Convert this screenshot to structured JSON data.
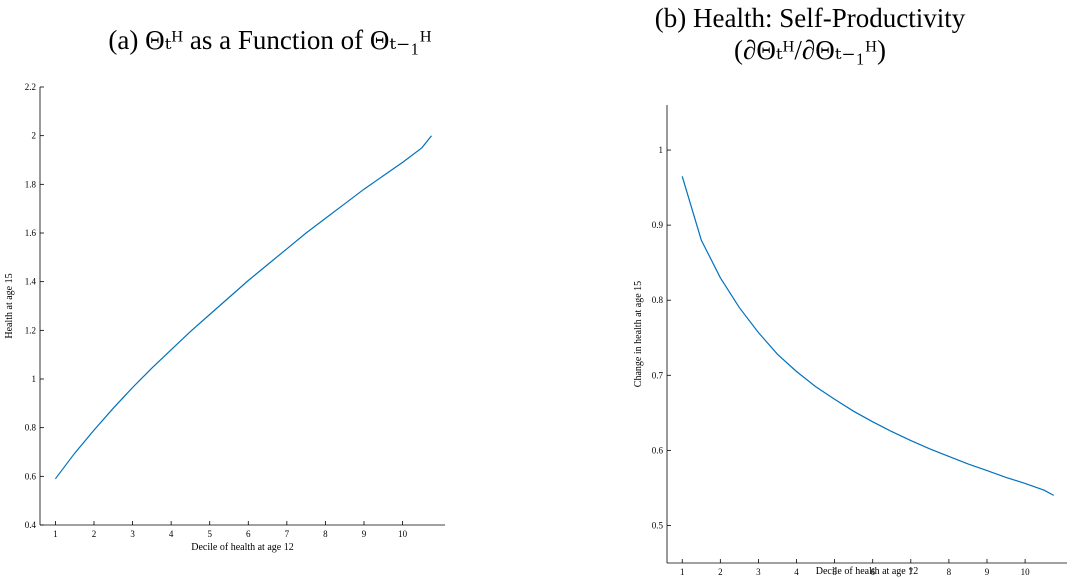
{
  "chart_data": [
    {
      "type": "line",
      "title": "(a) Θₜᴴ as a Function of Θₜ₋₁ᴴ",
      "subtitle": "",
      "xlabel": "Decile of health at age 12",
      "ylabel": "Health at age 15",
      "xlim": [
        0.6,
        11.1
      ],
      "ylim": [
        0.4,
        2.2
      ],
      "xticks": [
        1,
        2,
        3,
        4,
        5,
        6,
        7,
        8,
        9,
        10
      ],
      "yticks": [
        0.4,
        0.6,
        0.8,
        1,
        1.2,
        1.4,
        1.6,
        1.8,
        2,
        2.2
      ],
      "ytick_labels": [
        "0.4",
        "0.6",
        "0.8",
        "1",
        "1.2",
        "1.4",
        "1.6",
        "1.8",
        "2",
        "2.2"
      ],
      "grid": false,
      "color": "#0072bd",
      "series": [
        {
          "x": [
            1,
            1.5,
            2,
            2.5,
            3,
            3.5,
            4,
            4.5,
            5,
            5.5,
            6,
            6.5,
            7,
            7.5,
            8,
            8.5,
            9,
            9.5,
            10,
            10.5,
            10.75
          ],
          "values": [
            0.59,
            0.695,
            0.79,
            0.88,
            0.965,
            1.045,
            1.12,
            1.195,
            1.265,
            1.335,
            1.405,
            1.47,
            1.535,
            1.6,
            1.66,
            1.72,
            1.78,
            1.835,
            1.89,
            1.95,
            2.0
          ]
        }
      ]
    },
    {
      "type": "line",
      "title": "(b) Health: Self-Productivity",
      "subtitle": "(∂Θₜᴴ/∂Θₜ₋₁ᴴ)",
      "xlabel": "Decile of health at age 12",
      "ylabel": "Change in health at age 15",
      "xlim": [
        0.6,
        11.1
      ],
      "ylim": [
        0.45,
        1.06
      ],
      "xticks": [
        1,
        2,
        3,
        4,
        5,
        6,
        7,
        8,
        9,
        10
      ],
      "yticks": [
        0.5,
        0.6,
        0.7,
        0.8,
        0.9,
        1
      ],
      "ytick_labels": [
        "0.5",
        "0.6",
        "0.7",
        "0.8",
        "0.9",
        "1"
      ],
      "grid": false,
      "color": "#0072bd",
      "series": [
        {
          "x": [
            1,
            1.5,
            2,
            2.5,
            3,
            3.5,
            4,
            4.5,
            5,
            5.5,
            6,
            6.5,
            7,
            7.5,
            8,
            8.5,
            9,
            9.5,
            10,
            10.5,
            10.75
          ],
          "values": [
            0.965,
            0.88,
            0.83,
            0.79,
            0.757,
            0.728,
            0.705,
            0.685,
            0.668,
            0.652,
            0.638,
            0.625,
            0.613,
            0.602,
            0.592,
            0.582,
            0.573,
            0.564,
            0.556,
            0.547,
            0.54
          ]
        }
      ]
    }
  ]
}
